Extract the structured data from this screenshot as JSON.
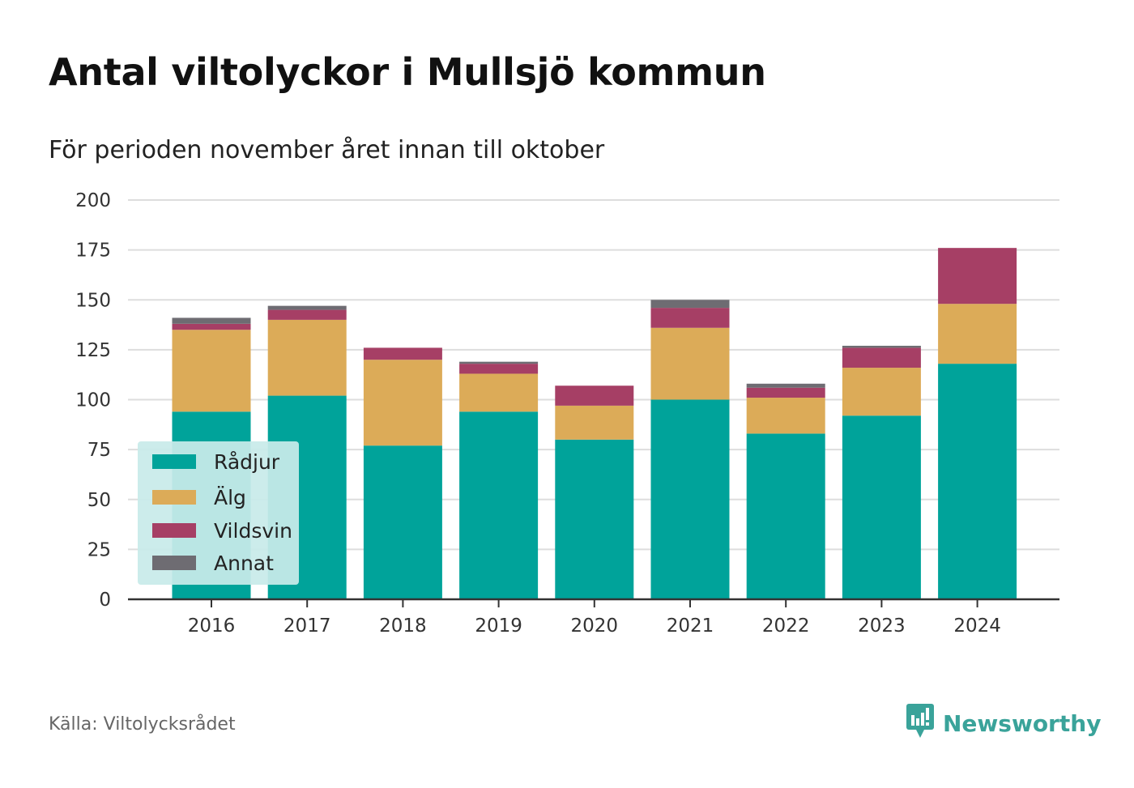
{
  "title": "Antal viltolyckor i Mullsjö kommun",
  "subtitle": "För perioden november året innan till oktober",
  "source": "Källa: Viltolycksrådet",
  "brand": {
    "name": "Newsworthy",
    "icon": "newsworthy-logo-icon",
    "color": "#3aa39a"
  },
  "chart_data": {
    "type": "bar",
    "stacked": true,
    "title": "Antal viltolyckor i Mullsjö kommun",
    "subtitle": "För perioden november året innan till oktober",
    "xlabel": "",
    "ylabel": "",
    "ylim": [
      0,
      200
    ],
    "yticks": [
      "0",
      "25",
      "50",
      "75",
      "100",
      "125",
      "150",
      "175",
      "200"
    ],
    "grid": true,
    "legend_position": "bottom-left",
    "categories": [
      "2016",
      "2017",
      "2018",
      "2019",
      "2020",
      "2021",
      "2022",
      "2023",
      "2024"
    ],
    "series": [
      {
        "name": "Rådjur",
        "color": "#00a39a",
        "values": [
          94,
          102,
          77,
          94,
          80,
          100,
          83,
          92,
          118
        ]
      },
      {
        "name": "Älg",
        "color": "#dcab58",
        "values": [
          41,
          38,
          43,
          19,
          17,
          36,
          18,
          24,
          30
        ]
      },
      {
        "name": "Vildsvin",
        "color": "#a63f65",
        "values": [
          3,
          5,
          6,
          5,
          10,
          10,
          5,
          10,
          28
        ]
      },
      {
        "name": "Annat",
        "color": "#6e6c72",
        "values": [
          3,
          2,
          0,
          1,
          0,
          4,
          2,
          1,
          0
        ]
      }
    ]
  }
}
